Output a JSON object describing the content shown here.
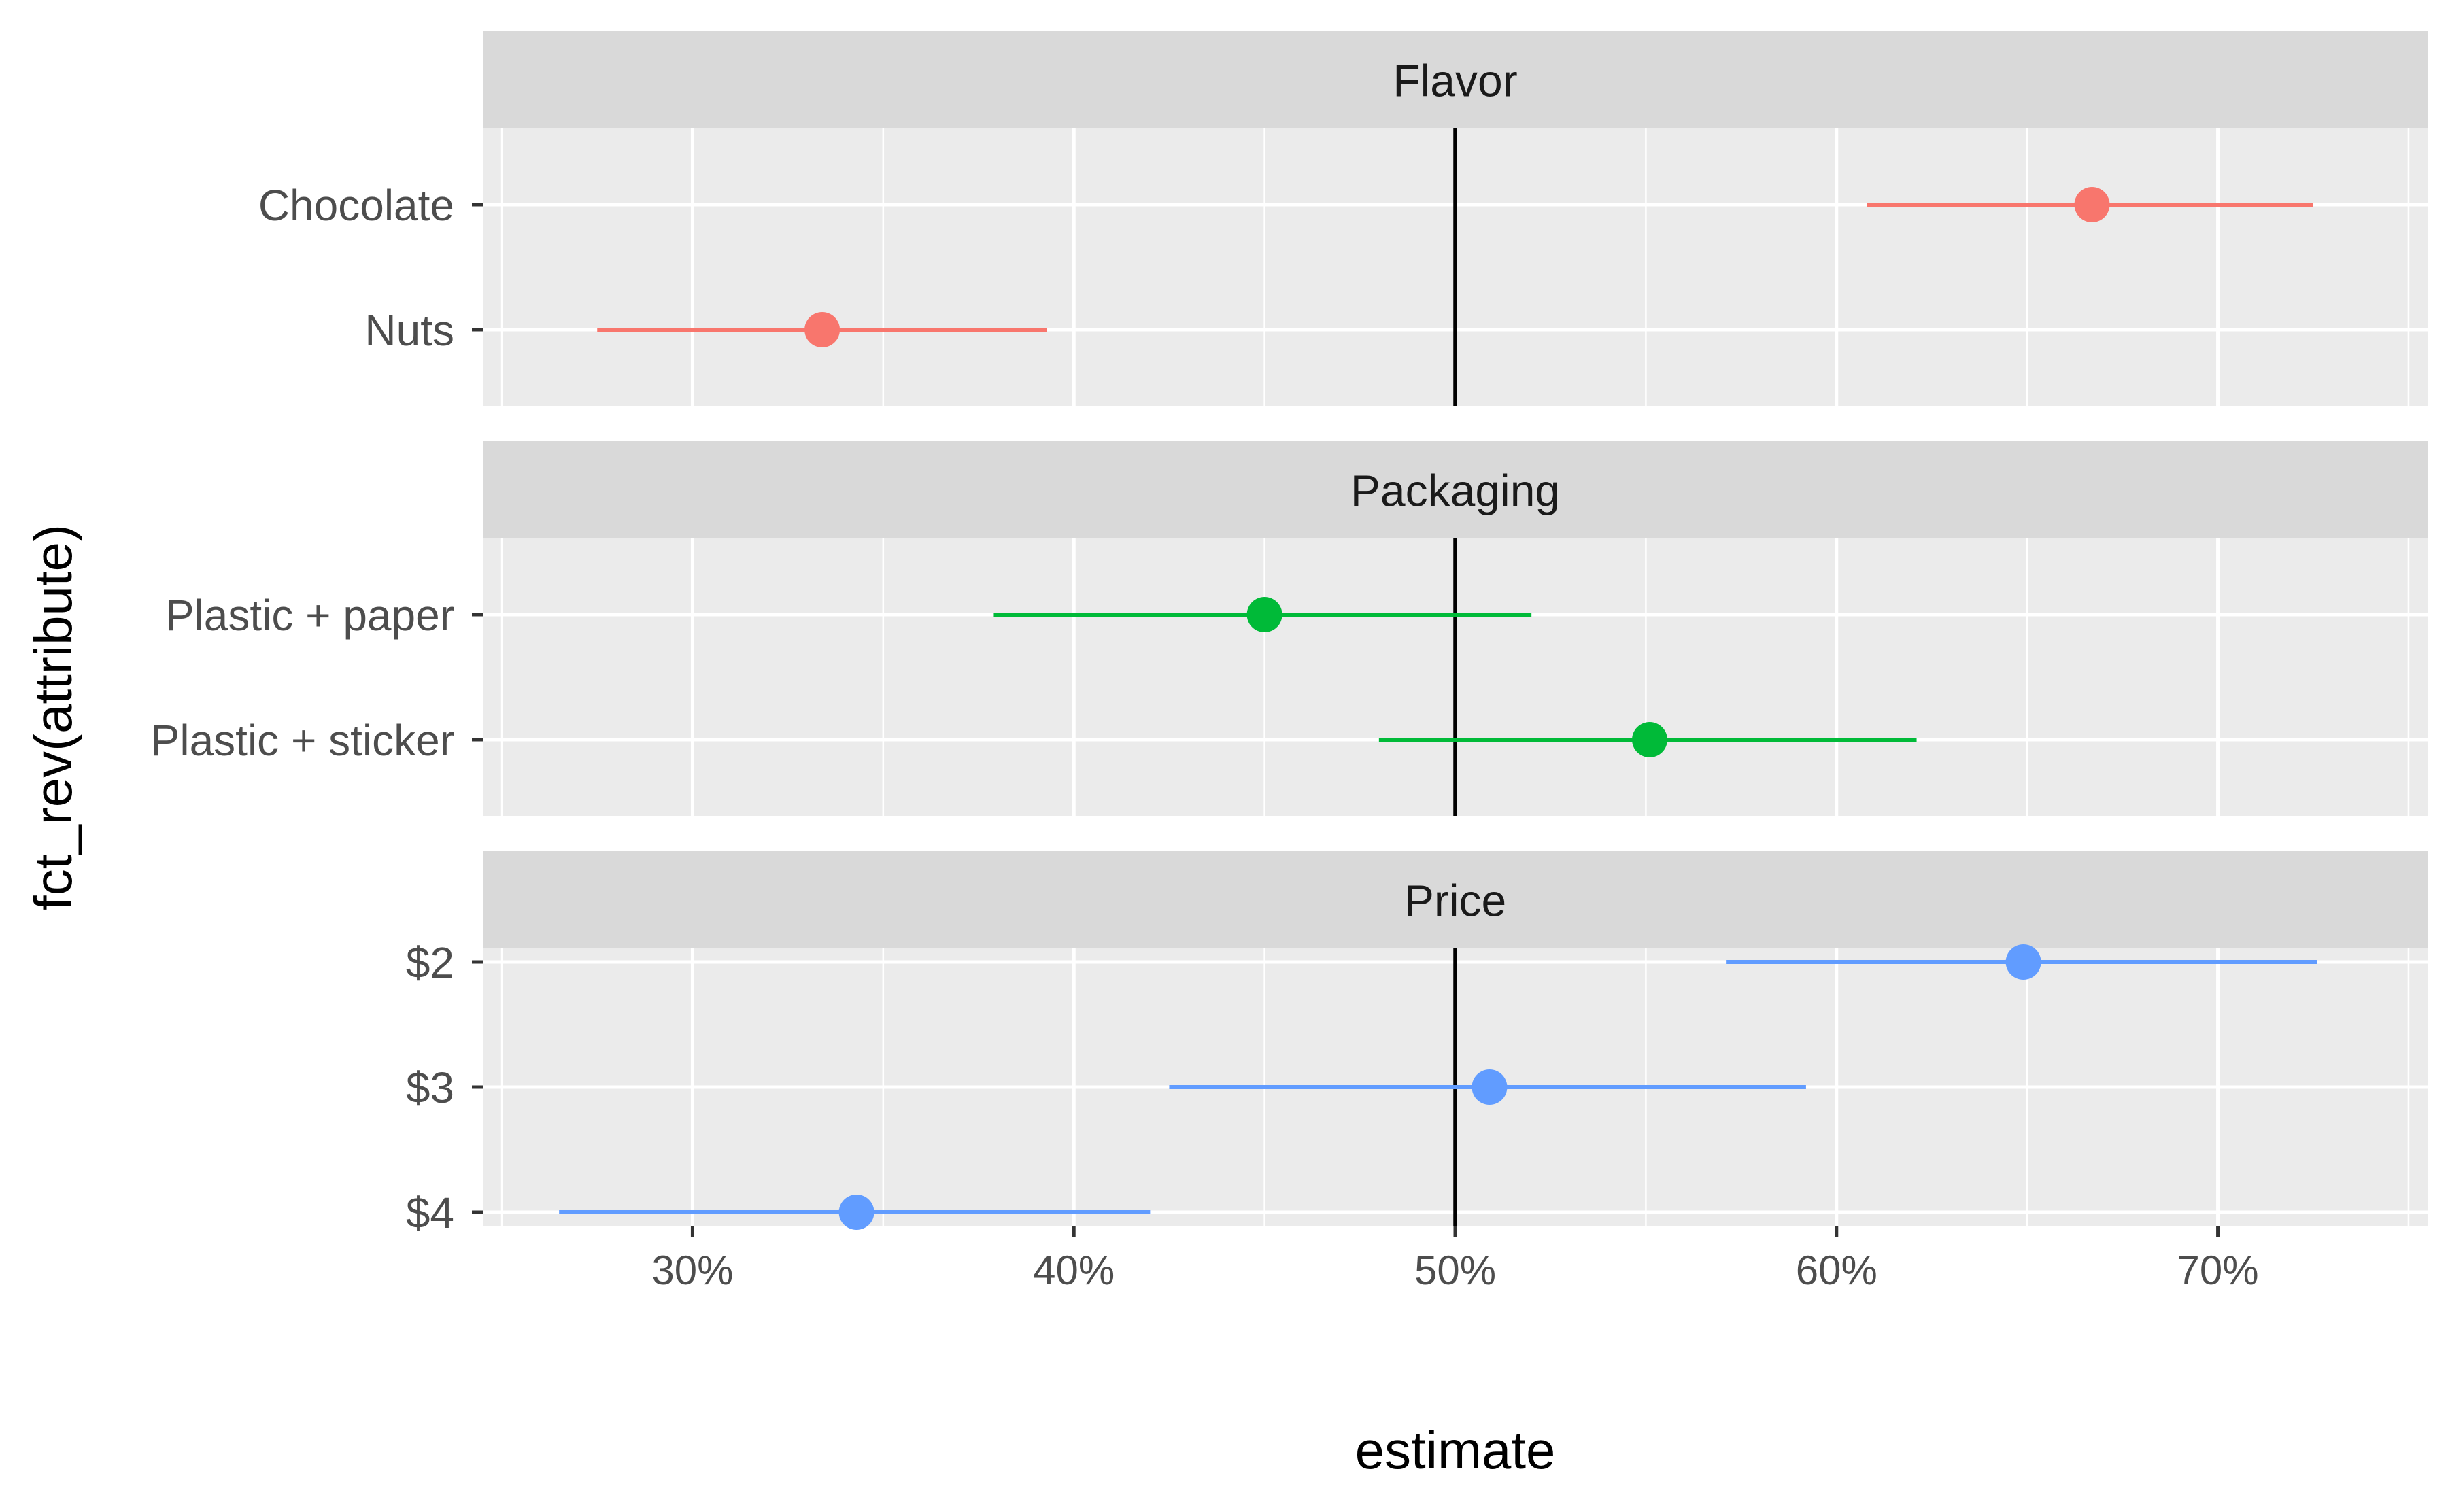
{
  "chart_data": {
    "type": "scatter",
    "subtype": "dot-and-whisker (estimate with interval), faceted",
    "xlabel": "estimate",
    "ylabel": "fct_rev(attribute)",
    "x_format": "percent",
    "xlim": [
      0.245,
      0.755
    ],
    "x_ticks": [
      0.3,
      0.4,
      0.5,
      0.6,
      0.7
    ],
    "x_tick_labels": [
      "30%",
      "40%",
      "50%",
      "60%",
      "70%"
    ],
    "reference_line_x": 0.5,
    "grid": true,
    "legend": "none",
    "facets": [
      {
        "name": "Flavor",
        "color": "#F8766D",
        "levels": [
          {
            "label": "Chocolate",
            "estimate": 0.667,
            "lower": 0.608,
            "upper": 0.725
          },
          {
            "label": "Nuts",
            "estimate": 0.334,
            "lower": 0.275,
            "upper": 0.393
          }
        ]
      },
      {
        "name": "Packaging",
        "color": "#00BA38",
        "levels": [
          {
            "label": "Plastic + paper",
            "estimate": 0.45,
            "lower": 0.379,
            "upper": 0.52
          },
          {
            "label": "Plastic + sticker",
            "estimate": 0.551,
            "lower": 0.48,
            "upper": 0.621
          }
        ]
      },
      {
        "name": "Price",
        "color": "#619CFF",
        "levels": [
          {
            "label": "$2",
            "estimate": 0.649,
            "lower": 0.571,
            "upper": 0.726
          },
          {
            "label": "$3",
            "estimate": 0.509,
            "lower": 0.425,
            "upper": 0.592
          },
          {
            "label": "$4",
            "estimate": 0.343,
            "lower": 0.265,
            "upper": 0.42
          }
        ]
      }
    ]
  }
}
